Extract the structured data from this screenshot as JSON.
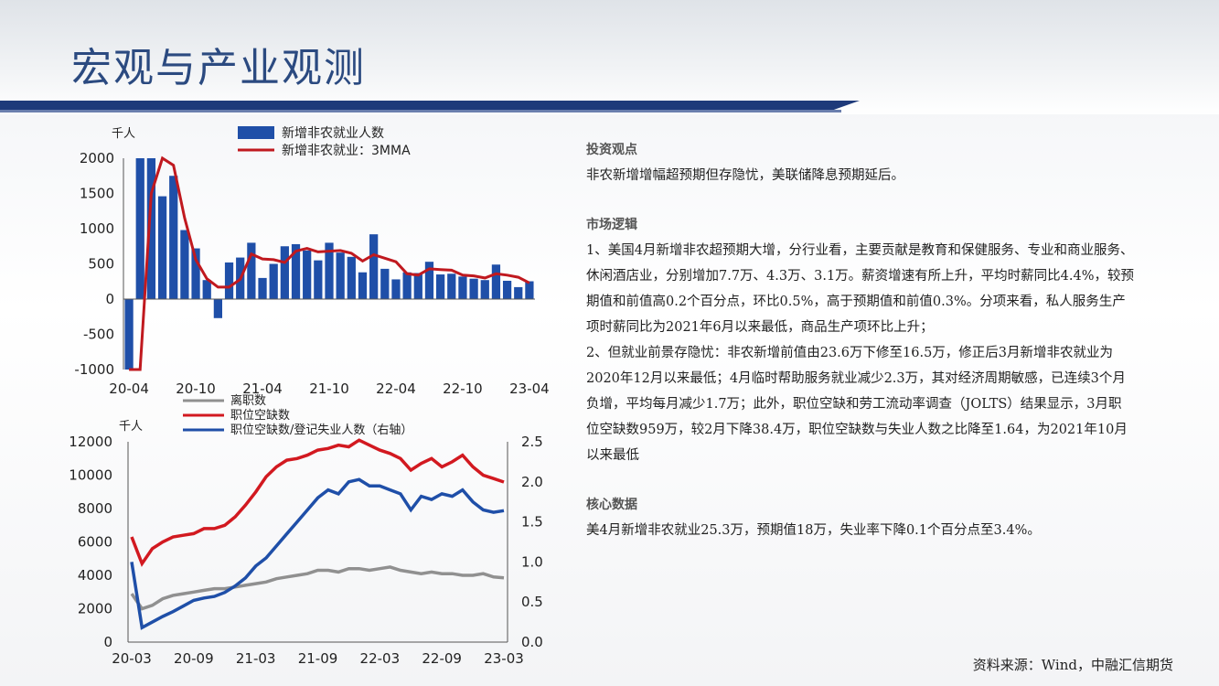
{
  "page": {
    "title": "宏观与产业观测",
    "source": "资料来源：Wind，中融汇信期货"
  },
  "commentary": {
    "h1": "投资观点",
    "p1": "非农新增增幅超预期但存隐忧，美联储降息预期延后。",
    "h2": "市场逻辑",
    "p2": "1、美国4月新增非农超预期大增，分行业看，主要贡献是教育和保健服务、专业和商业服务、休闲酒店业，分别增加7.7万、4.3万、3.1万。薪资增速有所上升，平均时薪同比4.4%，较预期值和前值高0.2个百分点，环比0.5%，高于预期值和前值0.3%。分项来看，私人服务生产项时薪同比为2021年6月以来最低，商品生产项环比上升；",
    "p3": "2、但就业前景存隐忧：非农新增前值由23.6万下修至16.5万，修正后3月新增非农就业为2020年12月以来最低；4月临时帮助服务就业减少2.3万，其对经济周期敏感，已连续3个月负增，平均每月减少1.7万；此外，职位空缺和劳工流动率调查（JOLTS）结果显示，3月职位空缺数959万，较2月下降38.4万，职位空缺数与失业人数之比降至1.64，为2021年10月以来最低",
    "h3": "核心数据",
    "p4": "美4月新增非农就业25.3万，预期值18万，失业率下降0.1个百分点至3.4%。"
  },
  "chart_data": [
    {
      "type": "bar",
      "unit_label": "千人",
      "ylim": [
        -1000,
        2000
      ],
      "yticks": [
        "2000",
        "1500",
        "1000",
        "500",
        "0",
        "-500",
        "-1000"
      ],
      "xticks": [
        "20-04",
        "20-10",
        "21-04",
        "21-10",
        "22-04",
        "22-10",
        "23-04"
      ],
      "legend": [
        "新增非农就业人数",
        "新增非农就业：3MMA"
      ],
      "colors": {
        "bar": "#1f4fa8",
        "line": "#c0191f"
      },
      "series": [
        {
          "name": "新增非农就业人数",
          "values": [
            -1000,
            2000,
            2000,
            1460,
            1750,
            980,
            720,
            270,
            -270,
            520,
            590,
            800,
            300,
            500,
            750,
            780,
            690,
            550,
            800,
            660,
            600,
            380,
            920,
            430,
            280,
            380,
            370,
            530,
            350,
            360,
            320,
            290,
            270,
            490,
            260,
            170,
            253
          ]
        },
        {
          "name": "新增非农就业：3MMA",
          "values": [
            -1000,
            -1000,
            1500,
            2000,
            1900,
            1150,
            560,
            290,
            170,
            170,
            280,
            640,
            570,
            560,
            520,
            680,
            720,
            670,
            680,
            690,
            650,
            540,
            630,
            580,
            530,
            360,
            340,
            430,
            420,
            410,
            340,
            330,
            300,
            360,
            340,
            310,
            230
          ]
        }
      ]
    },
    {
      "type": "line",
      "unit_label": "千人",
      "ylim": [
        0,
        12000
      ],
      "y2lim": [
        0,
        2.5
      ],
      "yticks": [
        "12000",
        "10000",
        "8000",
        "6000",
        "4000",
        "2000",
        "0"
      ],
      "y2ticks": [
        "2.5",
        "2.0",
        "1.5",
        "1.0",
        "0.5",
        "0.0"
      ],
      "xticks": [
        "20-03",
        "20-09",
        "21-03",
        "21-09",
        "22-03",
        "22-09",
        "23-03"
      ],
      "legend": [
        "离职数",
        "职位空缺数",
        "职位空缺数/登记失业人数（右轴）"
      ],
      "colors": {
        "quits": "#909090",
        "openings": "#d21920",
        "ratio": "#1f4fa8"
      },
      "series": [
        {
          "name": "离职数",
          "axis": "left",
          "values": [
            2900,
            2000,
            2200,
            2600,
            2800,
            2900,
            3000,
            3100,
            3200,
            3200,
            3300,
            3400,
            3500,
            3600,
            3800,
            3900,
            4000,
            4100,
            4300,
            4300,
            4200,
            4400,
            4400,
            4300,
            4400,
            4500,
            4300,
            4200,
            4100,
            4200,
            4100,
            4100,
            4000,
            4000,
            4100,
            3900,
            3850
          ]
        },
        {
          "name": "职位空缺数",
          "axis": "left",
          "values": [
            6300,
            4700,
            5600,
            6000,
            6300,
            6400,
            6500,
            6800,
            6800,
            7000,
            7500,
            8200,
            9000,
            9900,
            10500,
            10900,
            11000,
            11200,
            11500,
            11600,
            11800,
            11700,
            12100,
            11800,
            11500,
            11300,
            11000,
            10300,
            10700,
            11000,
            10500,
            10800,
            11200,
            10500,
            10000,
            9800,
            9590
          ]
        },
        {
          "name": "职位空缺数/登记失业人数（右轴）",
          "axis": "right",
          "values": [
            1.0,
            0.18,
            0.25,
            0.32,
            0.38,
            0.45,
            0.52,
            0.55,
            0.57,
            0.62,
            0.7,
            0.8,
            0.95,
            1.05,
            1.2,
            1.35,
            1.5,
            1.65,
            1.8,
            1.9,
            1.85,
            2.0,
            2.03,
            1.95,
            1.95,
            1.9,
            1.85,
            1.65,
            1.82,
            1.78,
            1.85,
            1.82,
            1.9,
            1.75,
            1.65,
            1.62,
            1.64
          ]
        }
      ]
    }
  ]
}
